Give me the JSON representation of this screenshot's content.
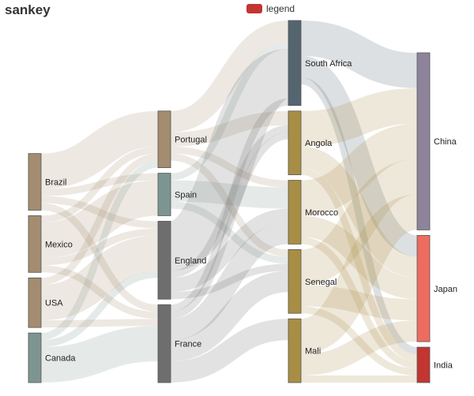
{
  "chart_data": {
    "type": "sankey",
    "title": "sankey",
    "legend": {
      "label": "legend",
      "color": "#c23531",
      "position": "top-center"
    },
    "node_colors": {
      "Brazil": "#a48c70",
      "Mexico": "#a48c70",
      "USA": "#a48c70",
      "Canada": "#7d9590",
      "Portugal": "#a48c70",
      "Spain": "#7d9590",
      "England": "#6e6e6e",
      "France": "#6e6e6e",
      "South Africa": "#546570",
      "Angola": "#a88e45",
      "Morocco": "#a88e45",
      "Senegal": "#a88e45",
      "Mali": "#a88e45",
      "China": "#8d849b",
      "Japan": "#ee6b60",
      "India": "#c23531"
    },
    "columns": [
      [
        "Brazil",
        "Mexico",
        "USA",
        "Canada"
      ],
      [
        "Portugal",
        "Spain",
        "England",
        "France"
      ],
      [
        "South Africa",
        "Angola",
        "Morocco",
        "Senegal",
        "Mali"
      ],
      [
        "China",
        "Japan",
        "India"
      ]
    ],
    "links": [
      {
        "source": "Brazil",
        "target": "Portugal",
        "value": 5
      },
      {
        "source": "Brazil",
        "target": "France",
        "value": 1
      },
      {
        "source": "Brazil",
        "target": "Spain",
        "value": 1
      },
      {
        "source": "Brazil",
        "target": "England",
        "value": 1
      },
      {
        "source": "Canada",
        "target": "Portugal",
        "value": 1
      },
      {
        "source": "Canada",
        "target": "France",
        "value": 5
      },
      {
        "source": "Canada",
        "target": "England",
        "value": 1
      },
      {
        "source": "Mexico",
        "target": "Portugal",
        "value": 1
      },
      {
        "source": "Mexico",
        "target": "France",
        "value": 1
      },
      {
        "source": "Mexico",
        "target": "Spain",
        "value": 5
      },
      {
        "source": "Mexico",
        "target": "England",
        "value": 1
      },
      {
        "source": "USA",
        "target": "Portugal",
        "value": 1
      },
      {
        "source": "USA",
        "target": "France",
        "value": 1
      },
      {
        "source": "USA",
        "target": "England",
        "value": 5
      },
      {
        "source": "Portugal",
        "target": "Angola",
        "value": 2
      },
      {
        "source": "Portugal",
        "target": "Senegal",
        "value": 1
      },
      {
        "source": "Portugal",
        "target": "Morocco",
        "value": 1
      },
      {
        "source": "Portugal",
        "target": "South Africa",
        "value": 3
      },
      {
        "source": "France",
        "target": "Angola",
        "value": 1
      },
      {
        "source": "France",
        "target": "Senegal",
        "value": 3
      },
      {
        "source": "France",
        "target": "Mali",
        "value": 3
      },
      {
        "source": "France",
        "target": "Morocco",
        "value": 3
      },
      {
        "source": "France",
        "target": "South Africa",
        "value": 1
      },
      {
        "source": "Spain",
        "target": "Senegal",
        "value": 1
      },
      {
        "source": "Spain",
        "target": "Morocco",
        "value": 3
      },
      {
        "source": "Spain",
        "target": "South Africa",
        "value": 1
      },
      {
        "source": "England",
        "target": "Angola",
        "value": 1
      },
      {
        "source": "England",
        "target": "Senegal",
        "value": 1
      },
      {
        "source": "England",
        "target": "Morocco",
        "value": 2
      },
      {
        "source": "England",
        "target": "South Africa",
        "value": 7
      },
      {
        "source": "South Africa",
        "target": "China",
        "value": 5
      },
      {
        "source": "South Africa",
        "target": "India",
        "value": 1
      },
      {
        "source": "South Africa",
        "target": "Japan",
        "value": 3
      },
      {
        "source": "Angola",
        "target": "China",
        "value": 5
      },
      {
        "source": "Angola",
        "target": "India",
        "value": 1
      },
      {
        "source": "Angola",
        "target": "Japan",
        "value": 3
      },
      {
        "source": "Senegal",
        "target": "China",
        "value": 5
      },
      {
        "source": "Senegal",
        "target": "India",
        "value": 1
      },
      {
        "source": "Senegal",
        "target": "Japan",
        "value": 3
      },
      {
        "source": "Mali",
        "target": "China",
        "value": 5
      },
      {
        "source": "Mali",
        "target": "India",
        "value": 1
      },
      {
        "source": "Mali",
        "target": "Japan",
        "value": 3
      },
      {
        "source": "Morocco",
        "target": "China",
        "value": 5
      },
      {
        "source": "Morocco",
        "target": "India",
        "value": 1
      },
      {
        "source": "Morocco",
        "target": "Japan",
        "value": 3
      }
    ]
  }
}
